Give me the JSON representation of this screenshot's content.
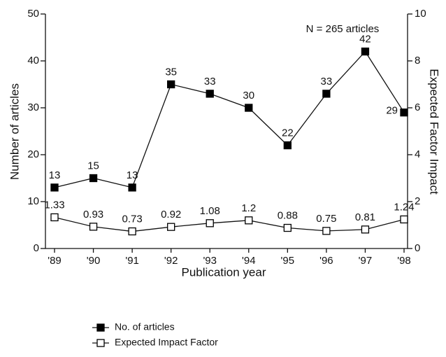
{
  "chart_data": {
    "type": "line",
    "annotation": "N = 265 articles",
    "xlabel": "Publication year",
    "ylabel": "Number of articles",
    "y2label": "Expected Factor Impact",
    "categories": [
      "'89",
      "'90",
      "'91",
      "'92",
      "'93",
      "'94",
      "'95",
      "'96",
      "'97",
      "'98"
    ],
    "series": [
      {
        "name": "No. of articles",
        "color": "#000000",
        "values": [
          13,
          15,
          13,
          35,
          33,
          30,
          22,
          33,
          42,
          29
        ]
      },
      {
        "name": "Expected Impact Factor",
        "color": "#ffffff",
        "axis": "y2",
        "values": [
          1.33,
          0.93,
          0.73,
          0.92,
          1.08,
          1.2,
          0.88,
          0.75,
          0.81,
          1.24
        ]
      }
    ],
    "ylim": [
      0,
      50
    ],
    "yticks": [
      0,
      10,
      20,
      30,
      40,
      50
    ],
    "y2lim": [
      0,
      10
    ],
    "y2ticks": [
      0,
      2,
      4,
      6,
      8,
      10
    ],
    "grid": false
  }
}
